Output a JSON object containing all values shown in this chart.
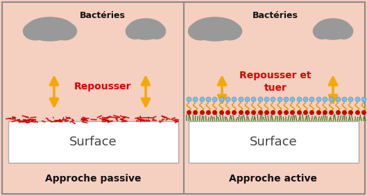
{
  "background_color": "#f5cfc0",
  "border_color": "#888888",
  "surface_box_color": "#ffffff",
  "surface_text": "Surface",
  "bacteria_color": "#999999",
  "arrow_color": "#f5a800",
  "repousser_color": "#dd0000",
  "left_label": "Approche passive",
  "right_label": "Approche active",
  "bacteria_label": "Bactéries",
  "left_arrow_text": "Repousser",
  "right_arrow_text": "Repousser et\ntuer",
  "passive_coating_color": "#cc0000",
  "fig_width": 5.29,
  "fig_height": 2.83,
  "dpi": 100
}
